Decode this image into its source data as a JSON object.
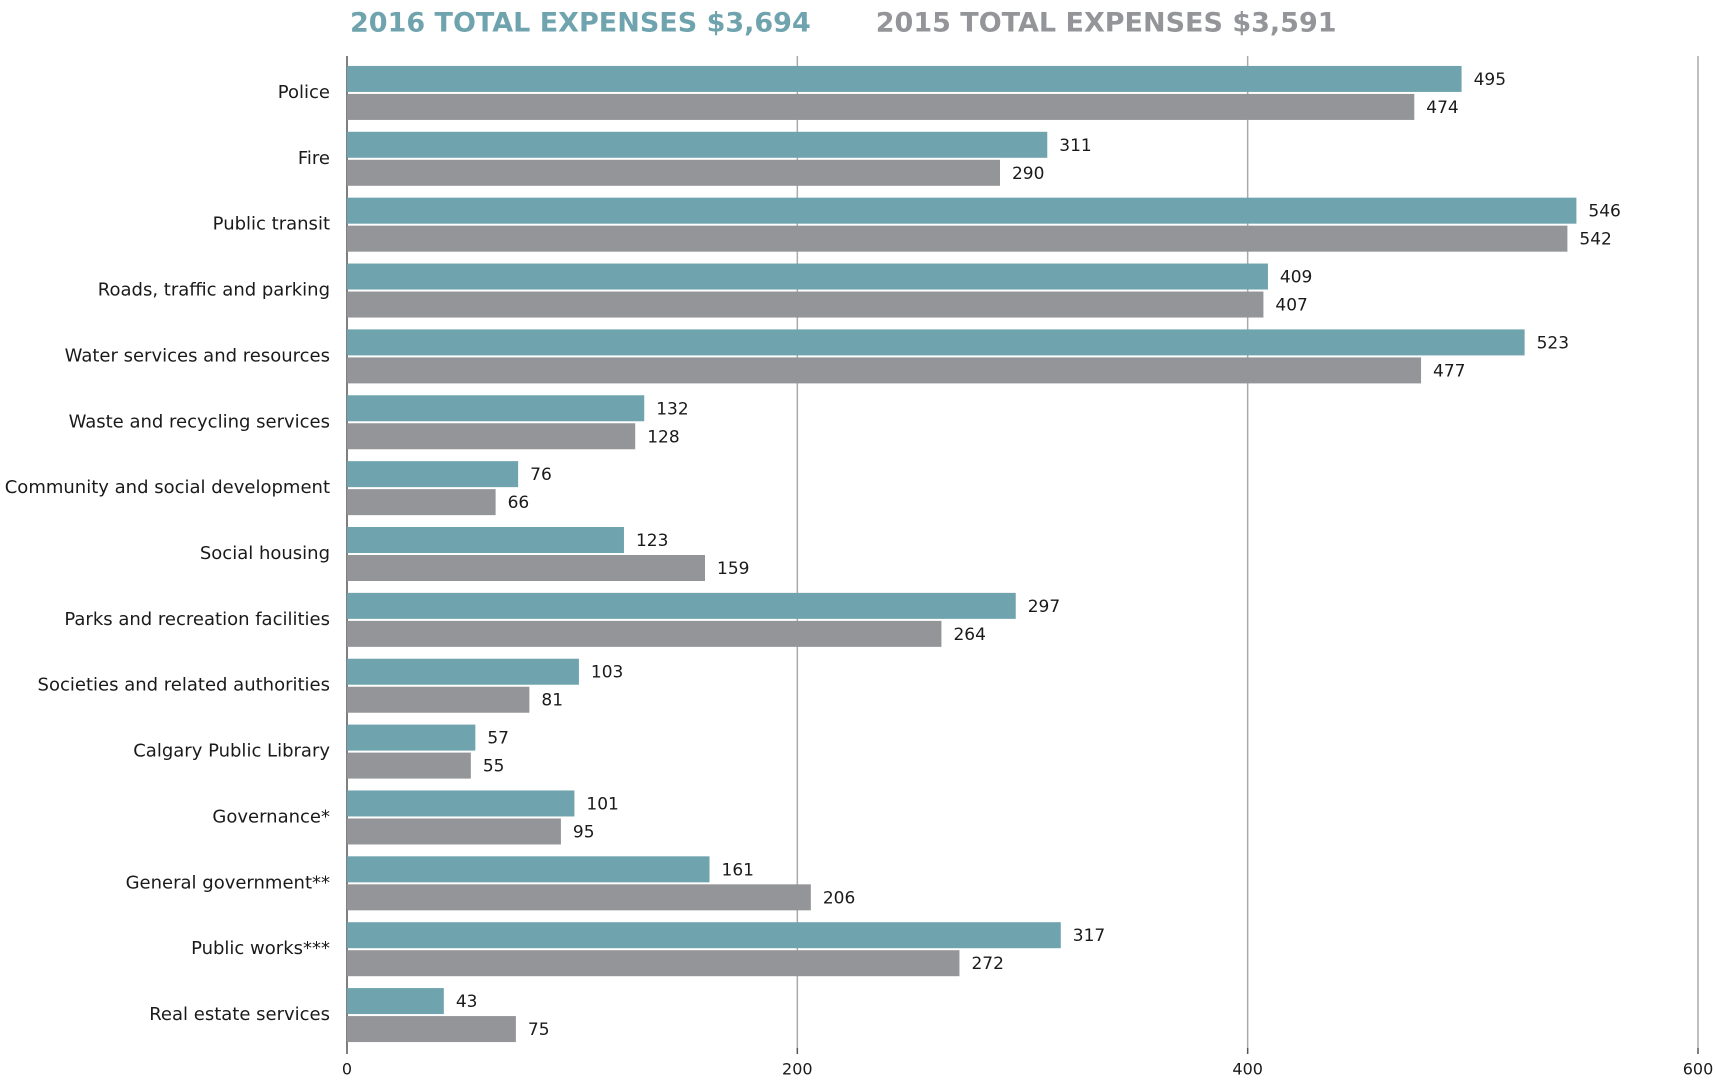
{
  "chart_data": {
    "type": "bar",
    "orientation": "horizontal",
    "categories": [
      "Police",
      "Fire",
      "Public transit",
      "Roads, traffic and parking",
      "Water services and resources",
      "Waste and recycling services",
      "Community and social development",
      "Social housing",
      "Parks and recreation facilities",
      "Societies and related authorities",
      "Calgary Public Library",
      "Governance*",
      "General government**",
      "Public works***",
      "Real estate services"
    ],
    "series": [
      {
        "name": "2016 TOTAL EXPENSES $3,694",
        "color": "#6fa3ad",
        "values": [
          495,
          311,
          546,
          409,
          523,
          132,
          76,
          123,
          297,
          103,
          57,
          101,
          161,
          317,
          43
        ]
      },
      {
        "name": "2015 TOTAL EXPENSES $3,591",
        "color": "#939598",
        "values": [
          474,
          290,
          542,
          407,
          477,
          128,
          66,
          159,
          264,
          81,
          55,
          95,
          206,
          272,
          75
        ]
      }
    ],
    "xlim": [
      0,
      600
    ],
    "xticks": [
      0,
      200,
      400,
      600
    ],
    "grid": true,
    "legend": "top"
  }
}
